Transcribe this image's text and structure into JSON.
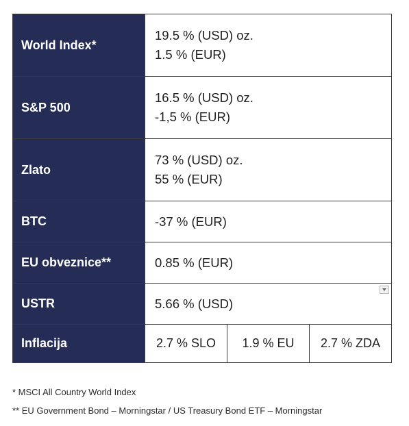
{
  "rows": [
    {
      "label": "World Index*",
      "line1": "19.5 % (USD) oz.",
      "line2": "1.5 % (EUR)"
    },
    {
      "label": "S&P 500",
      "line1": "16.5 % (USD) oz.",
      "line2": "-1,5 % (EUR)"
    },
    {
      "label": "Zlato",
      "line1": "73 % (USD) oz.",
      "line2": "55 % (EUR)"
    },
    {
      "label": "BTC",
      "value": "-37 % (EUR)"
    },
    {
      "label": "EU obveznice**",
      "value": "0.85 % (EUR)"
    },
    {
      "label": "USTR",
      "value": "5.66 % (USD)"
    },
    {
      "label": "Inflacija",
      "cells": [
        "2.7 % SLO",
        "1.9 % EU",
        "2.7 % ZDA"
      ]
    }
  ],
  "footnotes": [
    "* MSCI All Country World Index",
    "** EU Government Bond – Morningstar / US Treasury Bond ETF – Morningstar"
  ],
  "colors": {
    "label_bg": "#252c55",
    "label_text": "#ffffff"
  },
  "icons": {
    "ustr_row": "dropdown-arrow-icon"
  }
}
